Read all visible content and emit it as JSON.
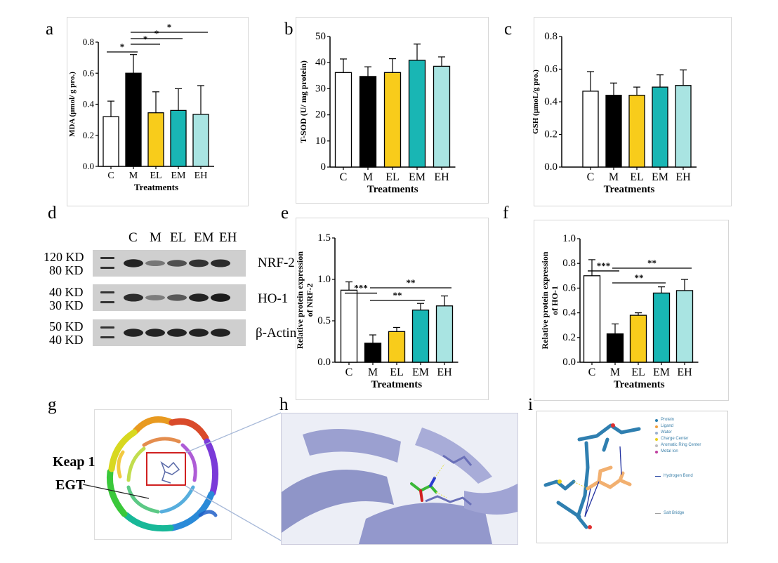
{
  "panel_labels": [
    "a",
    "b",
    "c",
    "d",
    "e",
    "f",
    "g",
    "h",
    "i"
  ],
  "chart_data": [
    {
      "id": "a",
      "type": "bar",
      "categories": [
        "C",
        "M",
        "EL",
        "EM",
        "EH"
      ],
      "values": [
        0.32,
        0.6,
        0.345,
        0.36,
        0.335
      ],
      "errors": [
        0.1,
        0.12,
        0.135,
        0.14,
        0.185
      ],
      "ylabel": "MDA (μmol/ g pro.)",
      "xlabel": "Treatments",
      "ylim": [
        0,
        0.8
      ],
      "yticks": [
        "0.0",
        "0.2",
        "0.4",
        "0.6",
        "0.8"
      ],
      "colors": [
        "#ffffff",
        "#000000",
        "#f8cc1b",
        "#19b6b4",
        "#a9e4e2"
      ],
      "significance": [
        {
          "from": 0,
          "to": 1,
          "label": "*"
        },
        {
          "from": 1,
          "to": 2,
          "label": "*"
        },
        {
          "from": 1,
          "to": 3,
          "label": "*"
        },
        {
          "from": 1,
          "to": 4,
          "label": "*"
        }
      ]
    },
    {
      "id": "b",
      "type": "bar",
      "categories": [
        "C",
        "M",
        "EL",
        "EM",
        "EH"
      ],
      "values": [
        36.2,
        34.7,
        36.2,
        40.9,
        38.6
      ],
      "errors": [
        5.2,
        3.7,
        5.3,
        6.2,
        3.6
      ],
      "ylabel": "T-SOD (U/ mg protein)",
      "xlabel": "Treatments",
      "ylim": [
        0,
        50
      ],
      "yticks": [
        "0",
        "10",
        "20",
        "30",
        "40",
        "50"
      ],
      "colors": [
        "#ffffff",
        "#000000",
        "#f8cc1b",
        "#19b6b4",
        "#a9e4e2"
      ],
      "significance": []
    },
    {
      "id": "c",
      "type": "bar",
      "categories": [
        "C",
        "M",
        "EL",
        "EM",
        "EH"
      ],
      "values": [
        0.465,
        0.44,
        0.44,
        0.49,
        0.5
      ],
      "errors": [
        0.12,
        0.075,
        0.05,
        0.075,
        0.095
      ],
      "ylabel": "GSH (μmoL/g pro.)",
      "xlabel": "Treatments",
      "ylim": [
        0,
        0.8
      ],
      "yticks": [
        "0.0",
        "0.2",
        "0.4",
        "0.6",
        "0.8"
      ],
      "colors": [
        "#ffffff",
        "#000000",
        "#f8cc1b",
        "#19b6b4",
        "#a9e4e2"
      ],
      "significance": []
    },
    {
      "id": "e",
      "type": "bar",
      "categories": [
        "C",
        "M",
        "EL",
        "EM",
        "EH"
      ],
      "values": [
        0.87,
        0.23,
        0.37,
        0.63,
        0.68
      ],
      "errors": [
        0.1,
        0.1,
        0.05,
        0.08,
        0.12
      ],
      "ylabel": "Relative protein expression of NRF-2",
      "xlabel": "Treatments",
      "ylim": [
        0,
        1.5
      ],
      "yticks": [
        "0.0",
        "0.5",
        "1.0",
        "1.5"
      ],
      "colors": [
        "#ffffff",
        "#000000",
        "#f8cc1b",
        "#19b6b4",
        "#a9e4e2"
      ],
      "significance": [
        {
          "from": 0,
          "to": 1,
          "label": "***"
        },
        {
          "from": 1,
          "to": 3,
          "label": "**"
        },
        {
          "from": 1,
          "to": 4,
          "label": "**"
        }
      ]
    },
    {
      "id": "f",
      "type": "bar",
      "categories": [
        "C",
        "M",
        "EL",
        "EM",
        "EH"
      ],
      "values": [
        0.7,
        0.23,
        0.38,
        0.56,
        0.58
      ],
      "errors": [
        0.13,
        0.08,
        0.02,
        0.05,
        0.09
      ],
      "ylabel": "Relative protein expression of HO-1",
      "xlabel": "Treatments",
      "ylim": [
        0,
        1.0
      ],
      "yticks": [
        "0.0",
        "0.2",
        "0.4",
        "0.6",
        "0.8",
        "1.0"
      ],
      "colors": [
        "#ffffff",
        "#000000",
        "#f8cc1b",
        "#19b6b4",
        "#a9e4e2"
      ],
      "significance": [
        {
          "from": 0,
          "to": 1,
          "label": "***"
        },
        {
          "from": 1,
          "to": 3,
          "label": "**"
        },
        {
          "from": 1,
          "to": 4,
          "label": "**"
        }
      ]
    }
  ],
  "western_blot": {
    "lanes": [
      "C",
      "M",
      "EL",
      "EM",
      "EH"
    ],
    "rows": [
      {
        "name": "NRF-2",
        "markers": [
          "120 KD",
          "80 KD"
        ],
        "intensity": [
          0.9,
          0.35,
          0.6,
          0.8,
          0.85
        ]
      },
      {
        "name": "HO-1",
        "markers": [
          "40 KD",
          "30 KD"
        ],
        "intensity": [
          0.85,
          0.3,
          0.55,
          0.9,
          0.95
        ]
      },
      {
        "name": "β-Actin",
        "markers": [
          "50 KD",
          "40 KD"
        ],
        "intensity": [
          0.9,
          0.9,
          0.9,
          0.9,
          0.9
        ]
      }
    ]
  },
  "docking": {
    "label_protein": "Keap 1",
    "label_ligand": "EGT",
    "legend_items": [
      {
        "label": "Protein",
        "color": "#2a7fb0"
      },
      {
        "label": "Ligand",
        "color": "#f0a040"
      },
      {
        "label": "Water",
        "color": "#9ab0d0"
      },
      {
        "label": "Charge Center",
        "color": "#e8d020"
      },
      {
        "label": "Aromatic Ring Center",
        "color": "#c0c0c0"
      },
      {
        "label": "Metal Ion",
        "color": "#c040a0"
      },
      {
        "label": "Hydrogen Bond",
        "color": "#2040a0"
      },
      {
        "label": "Salt Bridge",
        "color": "#a0a0a0"
      }
    ]
  }
}
